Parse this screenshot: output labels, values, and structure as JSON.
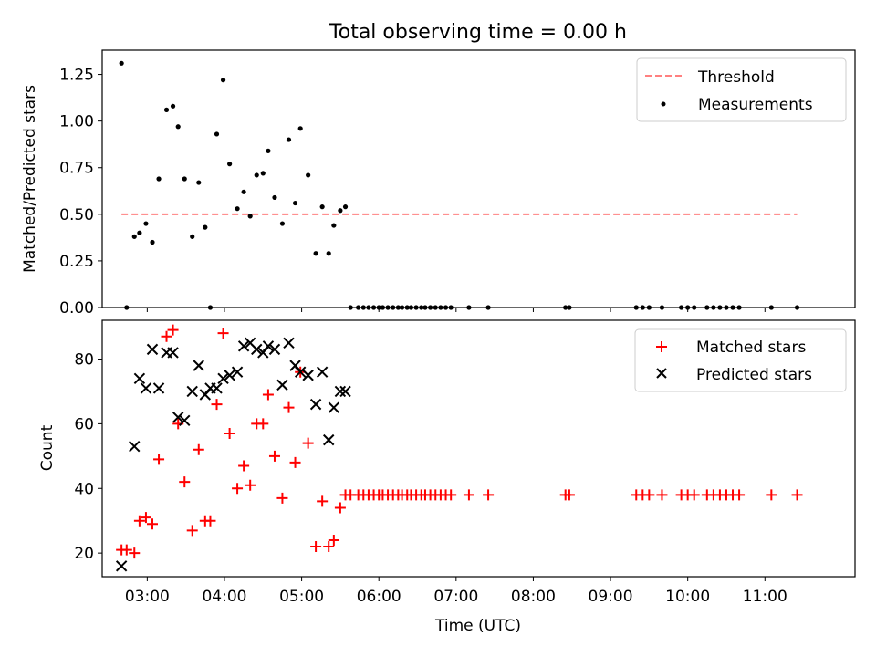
{
  "figure_title": "Total observing time = 0.00 h",
  "colors": {
    "threshold": "#ff8080",
    "measurements": "#000000",
    "matched": "#ff0000",
    "predicted": "#000000"
  },
  "chart_data": [
    {
      "type": "scatter",
      "panel": "top",
      "ylabel": "Matched/Predicted stars",
      "xlim": [
        "02:25",
        "12:10"
      ],
      "ylim": [
        0,
        1.38
      ],
      "yticks": [
        0,
        0.25,
        0.5,
        0.75,
        1.0,
        1.25
      ],
      "ytick_labels": [
        "0.00",
        "0.25",
        "0.50",
        "0.75",
        "1.00",
        "1.25"
      ],
      "grid": false,
      "legend_position": "top-right",
      "threshold": {
        "name": "Threshold",
        "value": 0.5,
        "x_range": [
          "02:40",
          "11:25"
        ]
      },
      "series": [
        {
          "name": "Measurements",
          "x": [
            "02:40",
            "02:44",
            "02:50",
            "02:54",
            "02:59",
            "03:04",
            "03:09",
            "03:15",
            "03:20",
            "03:24",
            "03:29",
            "03:35",
            "03:40",
            "03:45",
            "03:49",
            "03:54",
            "03:59",
            "04:04",
            "04:10",
            "04:15",
            "04:20",
            "04:25",
            "04:30",
            "04:34",
            "04:39",
            "04:45",
            "04:50",
            "04:55",
            "04:59",
            "05:05",
            "05:11",
            "05:16",
            "05:21",
            "05:25",
            "05:30",
            "05:34",
            "05:38",
            "05:44",
            "05:48",
            "05:52",
            "05:56",
            "06:00",
            "06:03",
            "06:07",
            "06:11",
            "06:15",
            "06:18",
            "06:22",
            "06:25",
            "06:29",
            "06:33",
            "06:36",
            "06:40",
            "06:44",
            "06:48",
            "06:52",
            "06:56",
            "07:10",
            "07:25",
            "08:25",
            "08:28",
            "09:20",
            "09:25",
            "09:30",
            "09:40",
            "09:55",
            "10:00",
            "10:05",
            "10:15",
            "10:20",
            "10:25",
            "10:30",
            "10:35",
            "10:40",
            "11:05",
            "11:25"
          ],
          "y": [
            1.31,
            0.0,
            0.38,
            0.4,
            0.45,
            0.35,
            0.69,
            1.06,
            1.08,
            0.97,
            0.69,
            0.38,
            0.67,
            0.43,
            0.0,
            0.93,
            1.22,
            0.77,
            0.53,
            0.62,
            0.49,
            0.71,
            0.72,
            0.84,
            0.59,
            0.45,
            0.9,
            0.56,
            0.96,
            0.71,
            0.29,
            0.54,
            0.29,
            0.44,
            0.52,
            0.54,
            0.0,
            0.0,
            0.0,
            0.0,
            0.0,
            0.0,
            0.0,
            0.0,
            0.0,
            0.0,
            0.0,
            0.0,
            0.0,
            0.0,
            0.0,
            0.0,
            0.0,
            0.0,
            0.0,
            0.0,
            0.0,
            0.0,
            0.0,
            0.0,
            0.0,
            0.0,
            0.0,
            0.0,
            0.0,
            0.0,
            0.0,
            0.0,
            0.0,
            0.0,
            0.0,
            0.0,
            0.0,
            0.0,
            0.0,
            0.0
          ]
        }
      ]
    },
    {
      "type": "scatter",
      "panel": "bottom",
      "xlabel": "Time (UTC)",
      "ylabel": "Count",
      "xlim": [
        "02:25",
        "12:10"
      ],
      "ylim": [
        12.7,
        92
      ],
      "xticks": [
        "03:00",
        "04:00",
        "05:00",
        "06:00",
        "07:00",
        "08:00",
        "09:00",
        "10:00",
        "11:00"
      ],
      "yticks": [
        20,
        40,
        60,
        80
      ],
      "grid": false,
      "legend_position": "top-right",
      "series": [
        {
          "name": "Matched stars",
          "x": [
            "02:40",
            "02:44",
            "02:50",
            "02:54",
            "02:59",
            "03:04",
            "03:09",
            "03:15",
            "03:20",
            "03:24",
            "03:29",
            "03:35",
            "03:40",
            "03:45",
            "03:49",
            "03:54",
            "03:59",
            "04:04",
            "04:10",
            "04:15",
            "04:20",
            "04:25",
            "04:30",
            "04:34",
            "04:39",
            "04:45",
            "04:50",
            "04:55",
            "04:59",
            "05:05",
            "05:11",
            "05:16",
            "05:21",
            "05:25",
            "05:30",
            "05:34",
            "05:38",
            "05:44",
            "05:48",
            "05:52",
            "05:56",
            "06:00",
            "06:03",
            "06:07",
            "06:11",
            "06:15",
            "06:18",
            "06:22",
            "06:25",
            "06:29",
            "06:33",
            "06:36",
            "06:40",
            "06:44",
            "06:48",
            "06:52",
            "06:56",
            "07:10",
            "07:25",
            "08:25",
            "08:28",
            "09:20",
            "09:25",
            "09:30",
            "09:40",
            "09:55",
            "10:00",
            "10:05",
            "10:15",
            "10:20",
            "10:25",
            "10:30",
            "10:35",
            "10:40",
            "11:05",
            "11:25"
          ],
          "y": [
            21,
            21,
            20,
            30,
            31,
            29,
            49,
            87,
            89,
            60,
            42,
            27,
            52,
            30,
            30,
            66,
            88,
            57,
            40,
            47,
            41,
            60,
            60,
            69,
            50,
            37,
            65,
            48,
            76,
            54,
            22,
            36,
            22,
            24,
            34,
            38,
            38,
            38,
            38,
            38,
            38,
            38,
            38,
            38,
            38,
            38,
            38,
            38,
            38,
            38,
            38,
            38,
            38,
            38,
            38,
            38,
            38,
            38,
            38,
            38,
            38,
            38,
            38,
            38,
            38,
            38,
            38,
            38,
            38,
            38,
            38,
            38,
            38,
            38,
            38,
            38
          ]
        },
        {
          "name": "Predicted stars",
          "x": [
            "02:40",
            "02:50",
            "02:54",
            "02:59",
            "03:04",
            "03:09",
            "03:15",
            "03:20",
            "03:24",
            "03:29",
            "03:35",
            "03:40",
            "03:45",
            "03:49",
            "03:54",
            "03:59",
            "04:04",
            "04:10",
            "04:15",
            "04:20",
            "04:25",
            "04:30",
            "04:34",
            "04:39",
            "04:45",
            "04:50",
            "04:55",
            "04:59",
            "05:05",
            "05:11",
            "05:16",
            "05:21",
            "05:25",
            "05:30",
            "05:34"
          ],
          "y": [
            16,
            53,
            74,
            71,
            83,
            71,
            82,
            82,
            62,
            61,
            70,
            78,
            69,
            71,
            71,
            74,
            75,
            76,
            84,
            85,
            83,
            82,
            84,
            83,
            72,
            85,
            78,
            76,
            75,
            66,
            76,
            55,
            65,
            70,
            70
          ]
        }
      ]
    }
  ]
}
